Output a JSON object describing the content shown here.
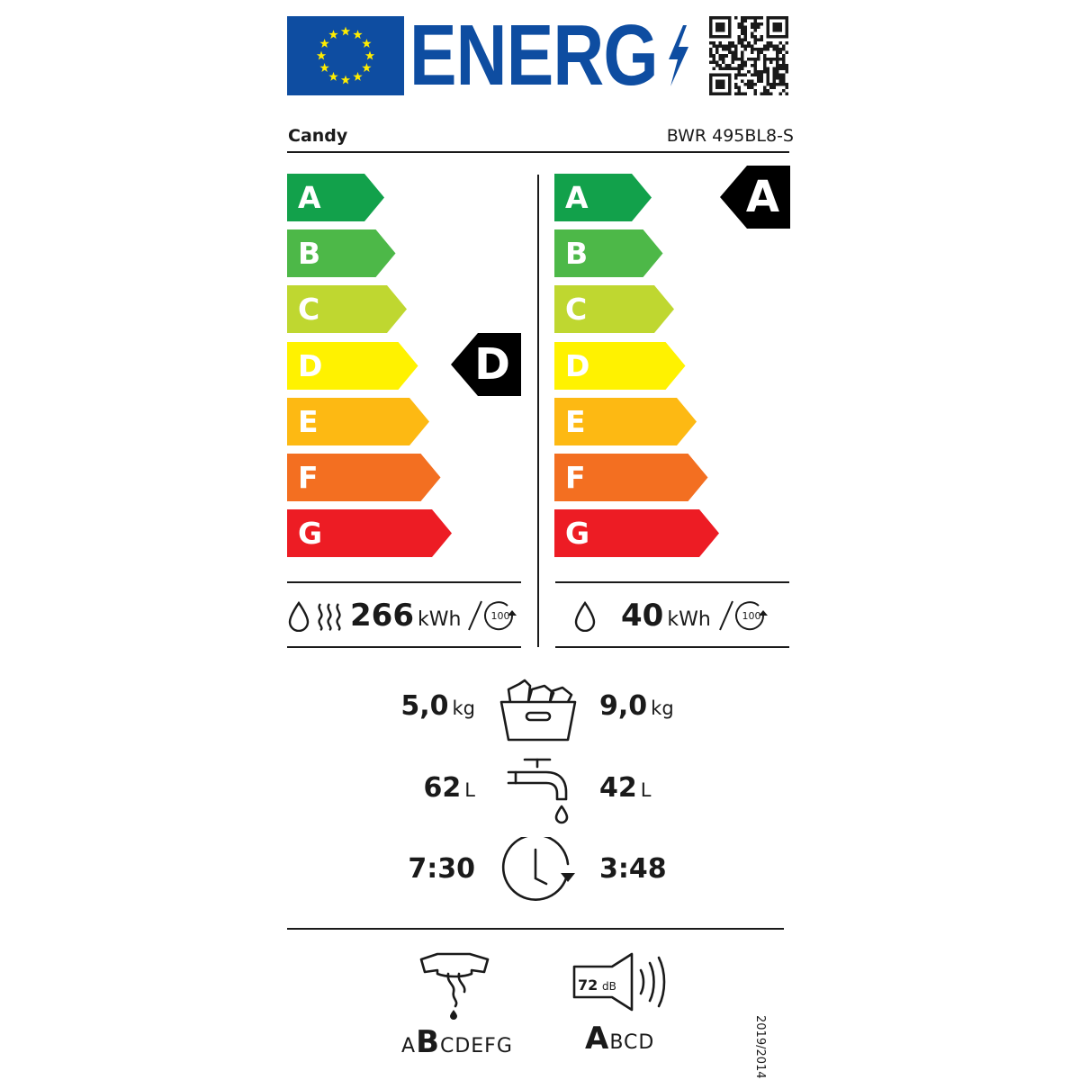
{
  "header": {
    "logo_word": "ENERG"
  },
  "supplier": {
    "brand": "Candy",
    "model": "BWR 495BL8-S"
  },
  "scale_letters": [
    "A",
    "B",
    "C",
    "D",
    "E",
    "F",
    "G"
  ],
  "scale_colors": [
    "#12a14b",
    "#4db848",
    "#bfd730",
    "#fff200",
    "#fdb913",
    "#f36f21",
    "#ed1c24"
  ],
  "left_panel": {
    "rating": "D",
    "energy_value": "266",
    "energy_unit": "kWh",
    "cycles_label": "100"
  },
  "right_panel": {
    "rating": "A",
    "energy_value": "40",
    "energy_unit": "kWh",
    "cycles_label": "100"
  },
  "capacity": {
    "left_value": "5,0",
    "left_unit": "kg",
    "right_value": "9,0",
    "right_unit": "kg"
  },
  "water": {
    "left_value": "62",
    "left_unit": "L",
    "right_value": "42",
    "right_unit": "L"
  },
  "duration": {
    "left_value": "7:30",
    "right_value": "3:48"
  },
  "spin_class": {
    "pre": "A",
    "selected": "B",
    "post": "CDEFG"
  },
  "noise": {
    "db_value": "72",
    "db_unit": "dB",
    "selected": "A",
    "post": "BCD"
  },
  "regulation": "2019/2014"
}
